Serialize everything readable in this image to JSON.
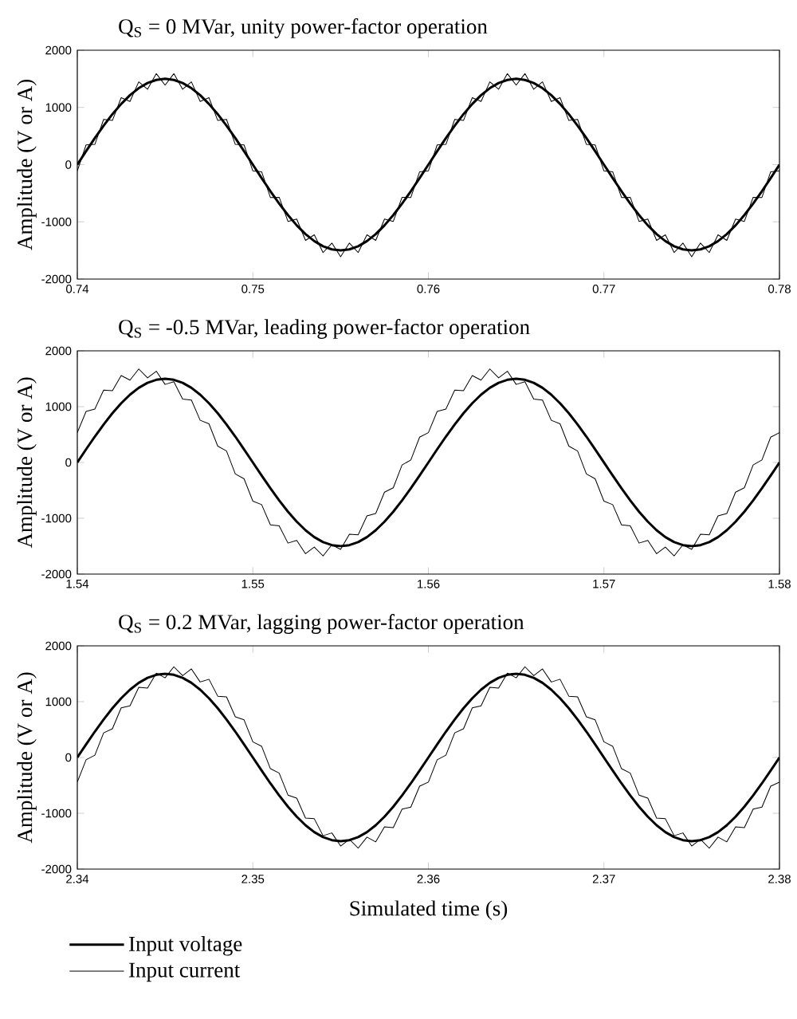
{
  "chart_data": [
    {
      "type": "line",
      "title": "Q$_{S}$ = 0 MVar, unity power-factor operation",
      "ylabel": "Amplitude (V or A)",
      "x": [
        0.74,
        0.7405,
        0.741,
        0.7415,
        0.742,
        0.7425,
        0.743,
        0.7435,
        0.744,
        0.7445,
        0.745,
        0.7455,
        0.746,
        0.7465,
        0.747,
        0.7475,
        0.748,
        0.7485,
        0.749,
        0.7495,
        0.75,
        0.7505,
        0.751,
        0.7515,
        0.752,
        0.7525,
        0.753,
        0.7535,
        0.754,
        0.7545,
        0.755,
        0.7555,
        0.756,
        0.7565,
        0.757,
        0.7575,
        0.758,
        0.7585,
        0.759,
        0.7595,
        0.76,
        0.7605,
        0.761,
        0.7615,
        0.762,
        0.7625,
        0.763,
        0.7635,
        0.764,
        0.7645,
        0.765,
        0.7655,
        0.766,
        0.7665,
        0.767,
        0.7675,
        0.768,
        0.7685,
        0.769,
        0.7695,
        0.77,
        0.7705,
        0.771,
        0.7715,
        0.772,
        0.7725,
        0.773,
        0.7735,
        0.774,
        0.7745,
        0.775,
        0.7755,
        0.776,
        0.7765,
        0.777,
        0.7775,
        0.778,
        0.7785,
        0.779,
        0.7795,
        0.78
      ],
      "series": [
        {
          "color": "#000000",
          "values": [
            0,
            235,
            464,
            681,
            882,
            1061,
            1214,
            1337,
            1427,
            1481,
            1500,
            1481,
            1427,
            1337,
            1214,
            1061,
            882,
            681,
            464,
            235,
            0,
            -235,
            -464,
            -681,
            -882,
            -1061,
            -1214,
            -1337,
            -1427,
            -1481,
            -1500,
            -1481,
            -1427,
            -1337,
            -1214,
            -1061,
            -882,
            -681,
            -464,
            -235,
            0,
            235,
            464,
            681,
            882,
            1061,
            1214,
            1337,
            1427,
            1481,
            1500,
            1481,
            1427,
            1337,
            1214,
            1061,
            882,
            681,
            464,
            235,
            0,
            -235,
            -464,
            -681,
            -882,
            -1061,
            -1214,
            -1337,
            -1427,
            -1481,
            -1500,
            -1481,
            -1427,
            -1337,
            -1214,
            -1061,
            -882,
            -681,
            -464,
            -235,
            0
          ]
        },
        {
          "color": "#000000",
          "values": [
            -110,
            345,
            354,
            791,
            772,
            1171,
            1104,
            1447,
            1317,
            1591,
            1390,
            1591,
            1317,
            1447,
            1104,
            1171,
            772,
            791,
            354,
            345,
            -110,
            -125,
            -574,
            -571,
            -992,
            -951,
            -1324,
            -1227,
            -1537,
            -1371,
            -1610,
            -1371,
            -1537,
            -1227,
            -1324,
            -951,
            -992,
            -571,
            -574,
            -125,
            -110,
            345,
            354,
            791,
            772,
            1171,
            1104,
            1447,
            1317,
            1591,
            1390,
            1591,
            1317,
            1447,
            1104,
            1171,
            772,
            791,
            354,
            345,
            -110,
            -125,
            -574,
            -571,
            -992,
            -951,
            -1324,
            -1227,
            -1537,
            -1371,
            -1610,
            -1371,
            -1537,
            -1227,
            -1324,
            -951,
            -992,
            -571,
            -574,
            -125,
            -110
          ]
        }
      ],
      "xlim": [
        0.74,
        0.78
      ],
      "ylim": [
        -2000,
        2000
      ],
      "xticks": [
        0.74,
        0.75,
        0.76,
        0.77,
        0.78
      ],
      "yticks": [
        -2000,
        -1000,
        0,
        1000,
        2000
      ]
    },
    {
      "type": "line",
      "title": "Q$_{S}$ = -0.5 MVar, leading power-factor operation",
      "ylabel": "Amplitude (V or A)",
      "x": [
        1.54,
        1.5405,
        1.541,
        1.5415,
        1.542,
        1.5425,
        1.543,
        1.5435,
        1.544,
        1.5445,
        1.545,
        1.5455,
        1.546,
        1.5465,
        1.547,
        1.5475,
        1.548,
        1.5485,
        1.549,
        1.5495,
        1.55,
        1.5505,
        1.551,
        1.5515,
        1.552,
        1.5525,
        1.553,
        1.5535,
        1.554,
        1.5545,
        1.555,
        1.5555,
        1.556,
        1.5565,
        1.557,
        1.5575,
        1.558,
        1.5585,
        1.559,
        1.5595,
        1.56,
        1.5605,
        1.561,
        1.5615,
        1.562,
        1.5625,
        1.563,
        1.5635,
        1.564,
        1.5645,
        1.565,
        1.5655,
        1.566,
        1.5665,
        1.567,
        1.5675,
        1.568,
        1.5685,
        1.569,
        1.5695,
        1.57,
        1.5705,
        1.571,
        1.5715,
        1.572,
        1.5725,
        1.573,
        1.5735,
        1.574,
        1.5745,
        1.575,
        1.5755,
        1.576,
        1.5765,
        1.577,
        1.5775,
        1.578,
        1.5785,
        1.579,
        1.5795,
        1.58
      ],
      "series": [
        {
          "color": "#000000",
          "values": [
            0,
            235,
            464,
            681,
            882,
            1061,
            1214,
            1337,
            1427,
            1481,
            1500,
            1481,
            1427,
            1337,
            1214,
            1061,
            882,
            681,
            464,
            235,
            0,
            -235,
            -464,
            -681,
            -882,
            -1061,
            -1214,
            -1337,
            -1427,
            -1481,
            -1500,
            -1481,
            -1427,
            -1337,
            -1214,
            -1061,
            -882,
            -681,
            -464,
            -235,
            0,
            235,
            464,
            681,
            882,
            1061,
            1214,
            1337,
            1427,
            1481,
            1500,
            1481,
            1427,
            1337,
            1214,
            1061,
            882,
            681,
            464,
            235,
            0,
            -235,
            -464,
            -681,
            -882,
            -1061,
            -1214,
            -1337,
            -1427,
            -1481,
            -1500,
            -1481,
            -1427,
            -1337,
            -1214,
            -1061,
            -882,
            -681,
            -464,
            -235,
            0
          ]
        },
        {
          "color": "#000000",
          "values": [
            533,
            915,
            958,
            1296,
            1285,
            1558,
            1475,
            1675,
            1515,
            1635,
            1398,
            1445,
            1136,
            1118,
            755,
            693,
            293,
            205,
            -205,
            -293,
            -693,
            -755,
            -1118,
            -1136,
            -1445,
            -1398,
            -1635,
            -1515,
            -1675,
            -1475,
            -1558,
            -1285,
            -1296,
            -958,
            -915,
            -533,
            -453,
            -45,
            45,
            453,
            533,
            915,
            958,
            1296,
            1285,
            1558,
            1475,
            1675,
            1515,
            1635,
            1398,
            1445,
            1136,
            1118,
            755,
            693,
            293,
            205,
            -205,
            -293,
            -693,
            -755,
            -1118,
            -1136,
            -1445,
            -1398,
            -1635,
            -1515,
            -1675,
            -1475,
            -1558,
            -1285,
            -1296,
            -958,
            -915,
            -533,
            -453,
            -45,
            45,
            453,
            533
          ]
        }
      ],
      "xlim": [
        1.54,
        1.58
      ],
      "ylim": [
        -2000,
        2000
      ],
      "xticks": [
        1.54,
        1.55,
        1.56,
        1.57,
        1.58
      ],
      "yticks": [
        -2000,
        -1000,
        0,
        1000,
        2000
      ]
    },
    {
      "type": "line",
      "title": "Q$_{S}$ = 0.2 MVar, lagging power-factor operation",
      "ylabel": "Amplitude (V or A)",
      "xlabel": "Simulated time (s)",
      "legend": "bottom",
      "x": [
        2.34,
        2.3405,
        2.341,
        2.3415,
        2.342,
        2.3425,
        2.343,
        2.3435,
        2.344,
        2.3445,
        2.345,
        2.3455,
        2.346,
        2.3465,
        2.347,
        2.3475,
        2.348,
        2.3485,
        2.349,
        2.3495,
        2.35,
        2.3505,
        2.351,
        2.3515,
        2.352,
        2.3525,
        2.353,
        2.3535,
        2.354,
        2.3545,
        2.355,
        2.3555,
        2.356,
        2.3565,
        2.357,
        2.3575,
        2.358,
        2.3585,
        2.359,
        2.3595,
        2.36,
        2.3605,
        2.361,
        2.3615,
        2.362,
        2.3625,
        2.363,
        2.3635,
        2.364,
        2.3645,
        2.365,
        2.3655,
        2.366,
        2.3665,
        2.367,
        2.3675,
        2.368,
        2.3685,
        2.369,
        2.3695,
        2.37,
        2.3705,
        2.371,
        2.3715,
        2.372,
        2.3725,
        2.373,
        2.3735,
        2.374,
        2.3745,
        2.375,
        2.3755,
        2.376,
        2.3765,
        2.377,
        2.3775,
        2.378,
        2.3785,
        2.379,
        2.3795,
        2.38
      ],
      "series": [
        {
          "name": "Input voltage",
          "color": "#000000",
          "values": [
            0,
            235,
            464,
            681,
            882,
            1061,
            1214,
            1337,
            1427,
            1481,
            1500,
            1481,
            1427,
            1337,
            1214,
            1061,
            882,
            681,
            464,
            235,
            0,
            -235,
            -464,
            -681,
            -882,
            -1061,
            -1214,
            -1337,
            -1427,
            -1481,
            -1500,
            -1481,
            -1427,
            -1337,
            -1214,
            -1061,
            -882,
            -681,
            -464,
            -235,
            0,
            235,
            464,
            681,
            882,
            1061,
            1214,
            1337,
            1427,
            1481,
            1500,
            1481,
            1427,
            1337,
            1214,
            1061,
            882,
            681,
            464,
            235,
            0,
            -235,
            -464,
            -681,
            -882,
            -1061,
            -1214,
            -1337,
            -1427,
            -1481,
            -1500,
            -1481,
            -1427,
            -1337,
            -1214,
            -1061,
            -882,
            -681,
            -464,
            -235,
            0
          ]
        },
        {
          "name": "Input current",
          "color": "#000000",
          "values": [
            -441,
            -41,
            41,
            441,
            514,
            889,
            926,
            1258,
            1242,
            1512,
            1427,
            1625,
            1465,
            1587,
            1352,
            1402,
            1098,
            1086,
            729,
            674,
            281,
            201,
            -201,
            -281,
            -674,
            -729,
            -1086,
            -1098,
            -1402,
            -1352,
            -1587,
            -1465,
            -1625,
            -1427,
            -1512,
            -1242,
            -1258,
            -926,
            -889,
            -514,
            -441,
            -41,
            41,
            441,
            514,
            889,
            926,
            1258,
            1242,
            1512,
            1427,
            1625,
            1465,
            1587,
            1352,
            1402,
            1098,
            1086,
            729,
            674,
            281,
            201,
            -201,
            -281,
            -674,
            -729,
            -1086,
            -1098,
            -1402,
            -1352,
            -1587,
            -1465,
            -1625,
            -1427,
            -1512,
            -1242,
            -1258,
            -926,
            -889,
            -514,
            -441
          ]
        }
      ],
      "xlim": [
        2.34,
        2.38
      ],
      "ylim": [
        -2000,
        2000
      ],
      "xticks": [
        2.34,
        2.35,
        2.36,
        2.37,
        2.38
      ],
      "yticks": [
        -2000,
        -1000,
        0,
        1000,
        2000
      ]
    }
  ]
}
